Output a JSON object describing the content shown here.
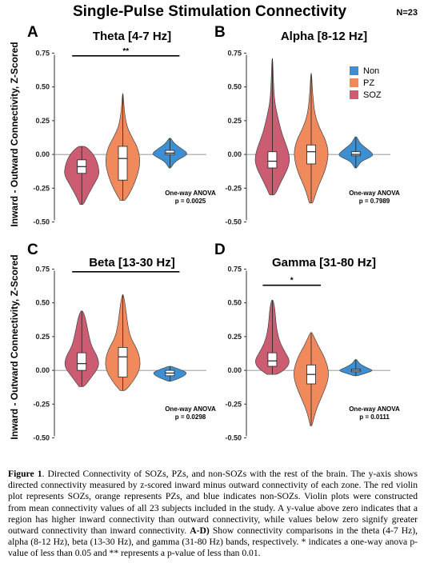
{
  "figure": {
    "title": "Single-Pulse Stimulation Connectivity",
    "n_label": "N=23",
    "ylabel": "Inward - Outward Connectivity, Z-Scored",
    "legend": [
      {
        "label": "Non",
        "color": "#3d8fd1"
      },
      {
        "label": "PZ",
        "color": "#f08a5d"
      },
      {
        "label": "SOZ",
        "color": "#cc5c72"
      }
    ],
    "colors": {
      "soz": "#cc5c72",
      "pz": "#f08a5d",
      "non": "#3d8fd1"
    }
  },
  "chart_data": [
    {
      "type": "violin",
      "letter": "A",
      "title": "Theta [4-7 Hz]",
      "ylim": [
        -0.55,
        0.8
      ],
      "yticks": [
        -0.5,
        -0.25,
        0.0,
        0.25,
        0.5,
        0.75
      ],
      "ytick_labels": [
        "-0.50",
        "-0.25",
        "0.00",
        "0.25",
        "0.50",
        "0.75"
      ],
      "anova_label": "One-way ANOVA",
      "p_label": "p = 0.0025",
      "significance": {
        "label": "**",
        "from": "SOZ",
        "to": "Non",
        "y": 0.73
      },
      "groups": [
        {
          "name": "SOZ",
          "color": "#cc5c72",
          "min": -0.37,
          "max": 0.06,
          "q1": -0.14,
          "median": -0.09,
          "q3": -0.04,
          "density": [
            [
              -0.37,
              0.1
            ],
            [
              -0.3,
              0.35
            ],
            [
              -0.22,
              0.7
            ],
            [
              -0.15,
              1.0
            ],
            [
              -0.09,
              0.95
            ],
            [
              -0.03,
              0.8
            ],
            [
              0.02,
              0.55
            ],
            [
              0.06,
              0.2
            ]
          ]
        },
        {
          "name": "PZ",
          "color": "#f08a5d",
          "min": -0.34,
          "max": 0.45,
          "q1": -0.19,
          "median": -0.03,
          "q3": 0.06,
          "density": [
            [
              -0.34,
              0.15
            ],
            [
              -0.25,
              0.55
            ],
            [
              -0.15,
              0.85
            ],
            [
              -0.05,
              1.0
            ],
            [
              0.05,
              0.85
            ],
            [
              0.12,
              0.55
            ],
            [
              0.2,
              0.25
            ],
            [
              0.3,
              0.1
            ],
            [
              0.45,
              0.02
            ]
          ]
        },
        {
          "name": "Non",
          "color": "#3d8fd1",
          "min": -0.1,
          "max": 0.12,
          "q1": 0.0,
          "median": 0.01,
          "q3": 0.03,
          "density": [
            [
              -0.1,
              0.05
            ],
            [
              -0.05,
              0.3
            ],
            [
              -0.01,
              0.9
            ],
            [
              0.01,
              1.0
            ],
            [
              0.04,
              0.7
            ],
            [
              0.08,
              0.25
            ],
            [
              0.12,
              0.05
            ]
          ]
        }
      ]
    },
    {
      "type": "violin",
      "letter": "B",
      "title": "Alpha [8-12 Hz]",
      "ylim": [
        -0.55,
        0.8
      ],
      "yticks": [
        -0.5,
        -0.25,
        0.0,
        0.25,
        0.5,
        0.75
      ],
      "ytick_labels": [
        "-0.50",
        "-0.25",
        "0.00",
        "0.25",
        "0.50",
        "0.75"
      ],
      "anova_label": "One-way ANOVA",
      "p_label": "p = 0.7989",
      "groups": [
        {
          "name": "SOZ",
          "color": "#cc5c72",
          "min": -0.3,
          "max": 0.71,
          "q1": -0.1,
          "median": -0.05,
          "q3": 0.02,
          "density": [
            [
              -0.3,
              0.15
            ],
            [
              -0.2,
              0.5
            ],
            [
              -0.1,
              0.9
            ],
            [
              -0.03,
              1.0
            ],
            [
              0.05,
              0.85
            ],
            [
              0.15,
              0.55
            ],
            [
              0.28,
              0.3
            ],
            [
              0.4,
              0.12
            ],
            [
              0.55,
              0.06
            ],
            [
              0.71,
              0.02
            ]
          ]
        },
        {
          "name": "PZ",
          "color": "#f08a5d",
          "min": -0.36,
          "max": 0.6,
          "q1": -0.07,
          "median": 0.02,
          "q3": 0.07,
          "density": [
            [
              -0.36,
              0.1
            ],
            [
              -0.25,
              0.35
            ],
            [
              -0.12,
              0.8
            ],
            [
              0.0,
              1.0
            ],
            [
              0.1,
              0.85
            ],
            [
              0.2,
              0.45
            ],
            [
              0.3,
              0.2
            ],
            [
              0.45,
              0.08
            ],
            [
              0.6,
              0.02
            ]
          ]
        },
        {
          "name": "Non",
          "color": "#3d8fd1",
          "min": -0.1,
          "max": 0.13,
          "q1": -0.01,
          "median": 0.0,
          "q3": 0.02,
          "density": [
            [
              -0.1,
              0.05
            ],
            [
              -0.05,
              0.3
            ],
            [
              -0.02,
              0.85
            ],
            [
              0.0,
              1.0
            ],
            [
              0.03,
              0.75
            ],
            [
              0.08,
              0.25
            ],
            [
              0.13,
              0.05
            ]
          ]
        }
      ]
    },
    {
      "type": "violin",
      "letter": "C",
      "title": "Beta [13-30 Hz]",
      "ylim": [
        -0.55,
        0.8
      ],
      "yticks": [
        -0.5,
        -0.25,
        0.0,
        0.25,
        0.5,
        0.75
      ],
      "ytick_labels": [
        "-0.50",
        "-0.25",
        "0.00",
        "0.25",
        "0.50",
        "0.75"
      ],
      "anova_label": "One-way ANOVA",
      "p_label": "p = 0.0298",
      "significance": {
        "label": "*",
        "from": "SOZ",
        "to": "Non",
        "y": 0.73
      },
      "groups": [
        {
          "name": "SOZ",
          "color": "#cc5c72",
          "min": -0.12,
          "max": 0.44,
          "q1": 0.0,
          "median": 0.05,
          "q3": 0.13,
          "density": [
            [
              -0.12,
              0.15
            ],
            [
              -0.05,
              0.55
            ],
            [
              0.03,
              1.0
            ],
            [
              0.1,
              0.9
            ],
            [
              0.18,
              0.55
            ],
            [
              0.26,
              0.4
            ],
            [
              0.34,
              0.28
            ],
            [
              0.4,
              0.18
            ],
            [
              0.44,
              0.05
            ]
          ]
        },
        {
          "name": "PZ",
          "color": "#f08a5d",
          "min": -0.15,
          "max": 0.56,
          "q1": -0.05,
          "median": 0.1,
          "q3": 0.17,
          "density": [
            [
              -0.15,
              0.15
            ],
            [
              -0.08,
              0.6
            ],
            [
              0.0,
              0.95
            ],
            [
              0.08,
              1.0
            ],
            [
              0.16,
              0.8
            ],
            [
              0.24,
              0.45
            ],
            [
              0.32,
              0.3
            ],
            [
              0.42,
              0.2
            ],
            [
              0.5,
              0.12
            ],
            [
              0.56,
              0.03
            ]
          ]
        },
        {
          "name": "Non",
          "color": "#3d8fd1",
          "min": -0.08,
          "max": 0.03,
          "q1": -0.04,
          "median": -0.02,
          "q3": 0.0,
          "density": [
            [
              -0.08,
              0.1
            ],
            [
              -0.05,
              0.7
            ],
            [
              -0.02,
              1.0
            ],
            [
              0.0,
              0.7
            ],
            [
              0.03,
              0.1
            ]
          ]
        }
      ]
    },
    {
      "type": "violin",
      "letter": "D",
      "title": "Gamma [31-80 Hz]",
      "ylim": [
        -0.55,
        0.8
      ],
      "yticks": [
        -0.5,
        -0.25,
        0.0,
        0.25,
        0.5,
        0.75
      ],
      "ytick_labels": [
        "-0.50",
        "-0.25",
        "0.00",
        "0.25",
        "0.50",
        "0.75"
      ],
      "anova_label": "One-way ANOVA",
      "p_label": "p = 0.0111",
      "significance": {
        "label": "*",
        "from": "SOZ",
        "to": "PZ",
        "y": 0.63
      },
      "groups": [
        {
          "name": "SOZ",
          "color": "#cc5c72",
          "min": -0.03,
          "max": 0.52,
          "q1": 0.03,
          "median": 0.07,
          "q3": 0.13,
          "density": [
            [
              -0.03,
              0.3
            ],
            [
              0.02,
              0.85
            ],
            [
              0.07,
              1.0
            ],
            [
              0.13,
              0.75
            ],
            [
              0.2,
              0.45
            ],
            [
              0.28,
              0.28
            ],
            [
              0.36,
              0.2
            ],
            [
              0.45,
              0.15
            ],
            [
              0.52,
              0.05
            ]
          ]
        },
        {
          "name": "PZ",
          "color": "#f08a5d",
          "min": -0.41,
          "max": 0.28,
          "q1": -0.1,
          "median": -0.03,
          "q3": 0.04,
          "density": [
            [
              -0.41,
              0.05
            ],
            [
              -0.3,
              0.25
            ],
            [
              -0.18,
              0.65
            ],
            [
              -0.08,
              0.95
            ],
            [
              0.0,
              1.0
            ],
            [
              0.1,
              0.75
            ],
            [
              0.18,
              0.4
            ],
            [
              0.28,
              0.05
            ]
          ]
        },
        {
          "name": "Non",
          "color": "#3d8fd1",
          "min": -0.04,
          "max": 0.08,
          "q1": -0.01,
          "median": 0.0,
          "q3": 0.01,
          "density": [
            [
              -0.04,
              0.1
            ],
            [
              -0.015,
              0.7
            ],
            [
              0.0,
              1.0
            ],
            [
              0.02,
              0.6
            ],
            [
              0.05,
              0.2
            ],
            [
              0.08,
              0.05
            ]
          ]
        }
      ]
    }
  ],
  "caption": {
    "label": "Figure 1",
    "part1": ". Directed Connectivity of SOZs, PZs, and non-SOZs with the rest of the brain. The y-axis shows directed connectivity measured by z-scored inward minus outward connectivity of each zone. The red violin plot represents SOZs, orange represents PZs, and blue indicates non-SOZs. Violin plots were constructed from mean connectivity values of all 23 subjects included in the study. A y-value above zero indicates that a region has higher inward connectivity than outward connectivity, while values below zero signify greater outward connectivity than inward connectivity. ",
    "bold_label": "A-D)",
    "part2": " Show connectivity comparisons in the theta (4-7 Hz), alpha (8-12 Hz), beta (13-30 Hz), and gamma (31-80 Hz) bands, respectively. * indicates a one-way anova p-value of less than 0.05 and ** represents a p-value of less than 0.01."
  }
}
